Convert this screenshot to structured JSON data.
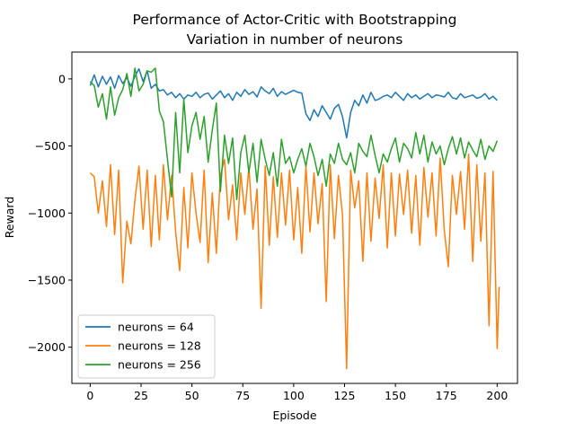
{
  "chart_data": {
    "type": "line",
    "title": "Performance of Actor-Critic with Bootstrapping",
    "subtitle": "Variation in number of neurons",
    "xlabel": "Episode",
    "ylabel": "Reward",
    "xlim": [
      -9,
      210
    ],
    "ylim": [
      -2270,
      200
    ],
    "xticks": [
      0,
      25,
      50,
      75,
      100,
      125,
      150,
      175,
      200
    ],
    "yticks": [
      0,
      -500,
      -1000,
      -1500,
      -2000
    ],
    "grid": false,
    "legend_position": "lower-left",
    "series": [
      {
        "name": "neurons = 64",
        "color": "#1f77b4",
        "x": [
          0,
          2,
          4,
          6,
          8,
          10,
          12,
          14,
          16,
          18,
          20,
          22,
          24,
          26,
          28,
          30,
          32,
          34,
          36,
          38,
          40,
          42,
          44,
          46,
          48,
          50,
          52,
          54,
          56,
          58,
          60,
          62,
          64,
          66,
          68,
          70,
          72,
          74,
          76,
          78,
          80,
          82,
          84,
          86,
          88,
          90,
          92,
          94,
          96,
          98,
          100,
          102,
          104,
          106,
          108,
          110,
          112,
          114,
          116,
          118,
          120,
          122,
          124,
          126,
          128,
          130,
          132,
          134,
          136,
          138,
          140,
          142,
          144,
          146,
          148,
          150,
          152,
          154,
          156,
          158,
          160,
          162,
          164,
          166,
          168,
          170,
          172,
          174,
          176,
          178,
          180,
          182,
          184,
          186,
          188,
          190,
          192,
          194,
          196,
          198,
          200
        ],
        "values": [
          -50,
          30,
          -60,
          20,
          -40,
          15,
          -70,
          25,
          -35,
          10,
          -55,
          20,
          75,
          -20,
          60,
          -70,
          -40,
          -90,
          -80,
          -120,
          -100,
          -140,
          -110,
          -150,
          -120,
          -130,
          -100,
          -140,
          -115,
          -105,
          -150,
          -120,
          -90,
          -140,
          -110,
          -160,
          -100,
          -130,
          -80,
          -115,
          -95,
          -135,
          -60,
          -90,
          -110,
          -70,
          -130,
          -95,
          -115,
          -100,
          -85,
          -100,
          -105,
          -260,
          -310,
          -230,
          -280,
          -200,
          -250,
          -300,
          -220,
          -190,
          -280,
          -440,
          -250,
          -160,
          -200,
          -120,
          -180,
          -100,
          -160,
          -150,
          -130,
          -120,
          -140,
          -100,
          -130,
          -160,
          -110,
          -140,
          -120,
          -150,
          -130,
          -110,
          -140,
          -120,
          -125,
          -135,
          -100,
          -140,
          -150,
          -110,
          -140,
          -130,
          -120,
          -145,
          -135,
          -110,
          -150,
          -130,
          -160
        ]
      },
      {
        "name": "neurons = 128",
        "color": "#ff7f0e",
        "x": [
          0,
          2,
          4,
          6,
          8,
          10,
          12,
          14,
          16,
          18,
          20,
          22,
          24,
          26,
          28,
          30,
          32,
          34,
          36,
          38,
          40,
          42,
          44,
          46,
          48,
          50,
          52,
          54,
          56,
          58,
          60,
          62,
          64,
          66,
          68,
          70,
          72,
          74,
          76,
          78,
          80,
          82,
          84,
          86,
          88,
          90,
          92,
          94,
          96,
          98,
          100,
          102,
          104,
          106,
          108,
          110,
          112,
          114,
          116,
          118,
          120,
          122,
          124,
          126,
          128,
          130,
          132,
          134,
          136,
          138,
          140,
          142,
          144,
          146,
          148,
          150,
          152,
          154,
          156,
          158,
          160,
          162,
          164,
          166,
          168,
          170,
          172,
          174,
          176,
          178,
          180,
          182,
          184,
          186,
          188,
          190,
          192,
          194,
          196,
          198,
          200,
          201
        ],
        "values": [
          -700,
          -730,
          -1000,
          -760,
          -1100,
          -640,
          -1160,
          -680,
          -1520,
          -1060,
          -1230,
          -900,
          -650,
          -1120,
          -680,
          -1250,
          -720,
          -1200,
          -640,
          -1050,
          -720,
          -1140,
          -1430,
          -810,
          -1260,
          -700,
          -1000,
          -1220,
          -680,
          -1370,
          -850,
          -1300,
          -720,
          -600,
          -1050,
          -790,
          -1200,
          -700,
          -1010,
          -660,
          -1120,
          -820,
          -1710,
          -650,
          -1240,
          -730,
          -1180,
          -700,
          -1090,
          -680,
          -1200,
          -810,
          -1300,
          -650,
          -1140,
          -700,
          -1080,
          -780,
          -1660,
          -640,
          -1190,
          -720,
          -1010,
          -2160,
          -680,
          -960,
          -760,
          -1360,
          -700,
          -1210,
          -740,
          -1040,
          -640,
          -1260,
          -700,
          -1170,
          -710,
          -1010,
          -680,
          -1150,
          -720,
          -1240,
          -660,
          -1030,
          -700,
          -1170,
          -590,
          -1130,
          -1400,
          -720,
          -1010,
          -690,
          -1120,
          -560,
          -1360,
          -640,
          -1210,
          -700,
          -1840,
          -690,
          -2010,
          -1550
        ]
      },
      {
        "name": "neurons = 256",
        "color": "#2ca02c",
        "x": [
          0,
          2,
          4,
          6,
          8,
          10,
          12,
          14,
          16,
          18,
          20,
          22,
          24,
          26,
          28,
          30,
          32,
          34,
          36,
          38,
          40,
          42,
          44,
          46,
          48,
          50,
          52,
          54,
          56,
          58,
          60,
          62,
          64,
          66,
          68,
          70,
          72,
          74,
          76,
          78,
          80,
          82,
          84,
          86,
          88,
          90,
          92,
          94,
          96,
          98,
          100,
          102,
          104,
          106,
          108,
          110,
          112,
          114,
          116,
          118,
          120,
          122,
          124,
          126,
          128,
          130,
          132,
          134,
          136,
          138,
          140,
          142,
          144,
          146,
          148,
          150,
          152,
          154,
          156,
          158,
          160,
          162,
          164,
          166,
          168,
          170,
          172,
          174,
          176,
          178,
          180,
          182,
          184,
          186,
          188,
          190,
          192,
          194,
          196,
          198,
          200
        ],
        "values": [
          -20,
          -50,
          -210,
          -110,
          -300,
          -60,
          -270,
          -140,
          -80,
          40,
          -130,
          80,
          -90,
          -40,
          60,
          50,
          80,
          -240,
          -320,
          -600,
          -880,
          -250,
          -700,
          -150,
          -550,
          -350,
          -250,
          -450,
          -280,
          -620,
          -380,
          -180,
          -840,
          -420,
          -630,
          -440,
          -900,
          -550,
          -420,
          -700,
          -480,
          -770,
          -450,
          -600,
          -720,
          -550,
          -800,
          -450,
          -630,
          -580,
          -700,
          -600,
          -520,
          -650,
          -480,
          -580,
          -720,
          -600,
          -800,
          -560,
          -630,
          -480,
          -600,
          -640,
          -550,
          -700,
          -480,
          -540,
          -580,
          -420,
          -570,
          -700,
          -560,
          -620,
          -520,
          -440,
          -620,
          -480,
          -520,
          -590,
          -400,
          -560,
          -420,
          -620,
          -470,
          -560,
          -500,
          -640,
          -520,
          -430,
          -560,
          -440,
          -590,
          -470,
          -530,
          -580,
          -450,
          -600,
          -500,
          -540,
          -460
        ]
      }
    ]
  }
}
